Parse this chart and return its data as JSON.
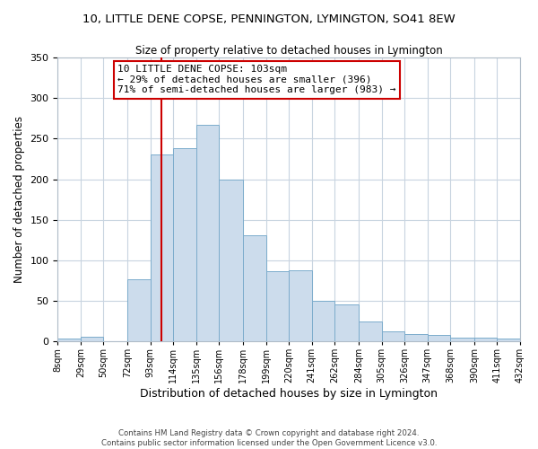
{
  "title": "10, LITTLE DENE COPSE, PENNINGTON, LYMINGTON, SO41 8EW",
  "subtitle": "Size of property relative to detached houses in Lymington",
  "xlabel": "Distribution of detached houses by size in Lymington",
  "ylabel": "Number of detached properties",
  "bar_color": "#ccdcec",
  "bar_edge_color": "#7caccc",
  "background_color": "#ffffff",
  "grid_color": "#c8d4e0",
  "vline_x": 103,
  "vline_color": "#cc0000",
  "annotation_title": "10 LITTLE DENE COPSE: 103sqm",
  "annotation_line1": "← 29% of detached houses are smaller (396)",
  "annotation_line2": "71% of semi-detached houses are larger (983) →",
  "annotation_box_color": "#ffffff",
  "annotation_box_edge": "#cc0000",
  "edges": [
    8,
    29,
    50,
    72,
    93,
    114,
    135,
    156,
    178,
    199,
    220,
    241,
    262,
    284,
    305,
    326,
    347,
    368,
    390,
    411,
    432
  ],
  "heights": [
    3,
    6,
    0,
    77,
    230,
    238,
    267,
    200,
    131,
    87,
    88,
    50,
    46,
    25,
    12,
    9,
    8,
    5,
    5,
    3
  ],
  "tick_labels": [
    "8sqm",
    "29sqm",
    "50sqm",
    "72sqm",
    "93sqm",
    "114sqm",
    "135sqm",
    "156sqm",
    "178sqm",
    "199sqm",
    "220sqm",
    "241sqm",
    "262sqm",
    "284sqm",
    "305sqm",
    "326sqm",
    "347sqm",
    "368sqm",
    "390sqm",
    "411sqm",
    "432sqm"
  ],
  "ylim": [
    0,
    350
  ],
  "yticks": [
    0,
    50,
    100,
    150,
    200,
    250,
    300,
    350
  ],
  "footer_line1": "Contains HM Land Registry data © Crown copyright and database right 2024.",
  "footer_line2": "Contains public sector information licensed under the Open Government Licence v3.0."
}
